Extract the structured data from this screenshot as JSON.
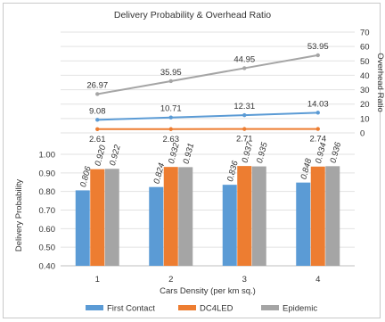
{
  "chart_data": [
    {
      "type": "line",
      "title": "Delivery Probability & Overhead Ratio",
      "x": [
        "1",
        "2",
        "3",
        "4"
      ],
      "y2label": "Overhead Ratio",
      "y2lim": [
        0,
        70
      ],
      "y2ticks": [
        "0",
        "10",
        "20",
        "30",
        "40",
        "50",
        "60",
        "70"
      ],
      "grid": true,
      "series": [
        {
          "name": "Epidemic",
          "values": [
            26.97,
            35.95,
            44.95,
            53.95
          ],
          "labels": [
            "26.97",
            "35.95",
            "44.95",
            "53.95"
          ],
          "color": "#a5a5a5"
        },
        {
          "name": "First Contact",
          "values": [
            9.08,
            10.71,
            12.31,
            14.03
          ],
          "labels": [
            "9.08",
            "10.71",
            "12.31",
            "14.03"
          ],
          "color": "#5b9bd5"
        },
        {
          "name": "DC4LED",
          "values": [
            2.61,
            2.63,
            2.71,
            2.74
          ],
          "labels": [
            "2.61",
            "2.63",
            "2.71",
            "2.74"
          ],
          "color": "#ed7d31"
        }
      ]
    },
    {
      "type": "bar",
      "categories": [
        "1",
        "2",
        "3",
        "4"
      ],
      "xlabel": "Cars Density (per km sq.)",
      "ylabel": "Delivery Probability",
      "ylim": [
        0.4,
        1.0
      ],
      "yticks": [
        "0.40",
        "0.50",
        "0.60",
        "0.70",
        "0.80",
        "0.90",
        "1.00"
      ],
      "grid": true,
      "legend_position": "bottom",
      "series": [
        {
          "name": "First Contact",
          "values": [
            0.806,
            0.824,
            0.836,
            0.848
          ],
          "labels": [
            "0.806",
            "0.824",
            "0.836",
            "0.848"
          ],
          "color": "#5b9bd5"
        },
        {
          "name": "DC4LED",
          "values": [
            0.92,
            0.932,
            0.937,
            0.934
          ],
          "labels": [
            "0.920",
            "0.932",
            "0.937",
            "0.934"
          ],
          "color": "#ed7d31"
        },
        {
          "name": "Epidemic",
          "values": [
            0.922,
            0.931,
            0.935,
            0.936
          ],
          "labels": [
            "0.922",
            "0.931",
            "0.935",
            "0.936"
          ],
          "color": "#a5a5a5"
        }
      ]
    }
  ]
}
